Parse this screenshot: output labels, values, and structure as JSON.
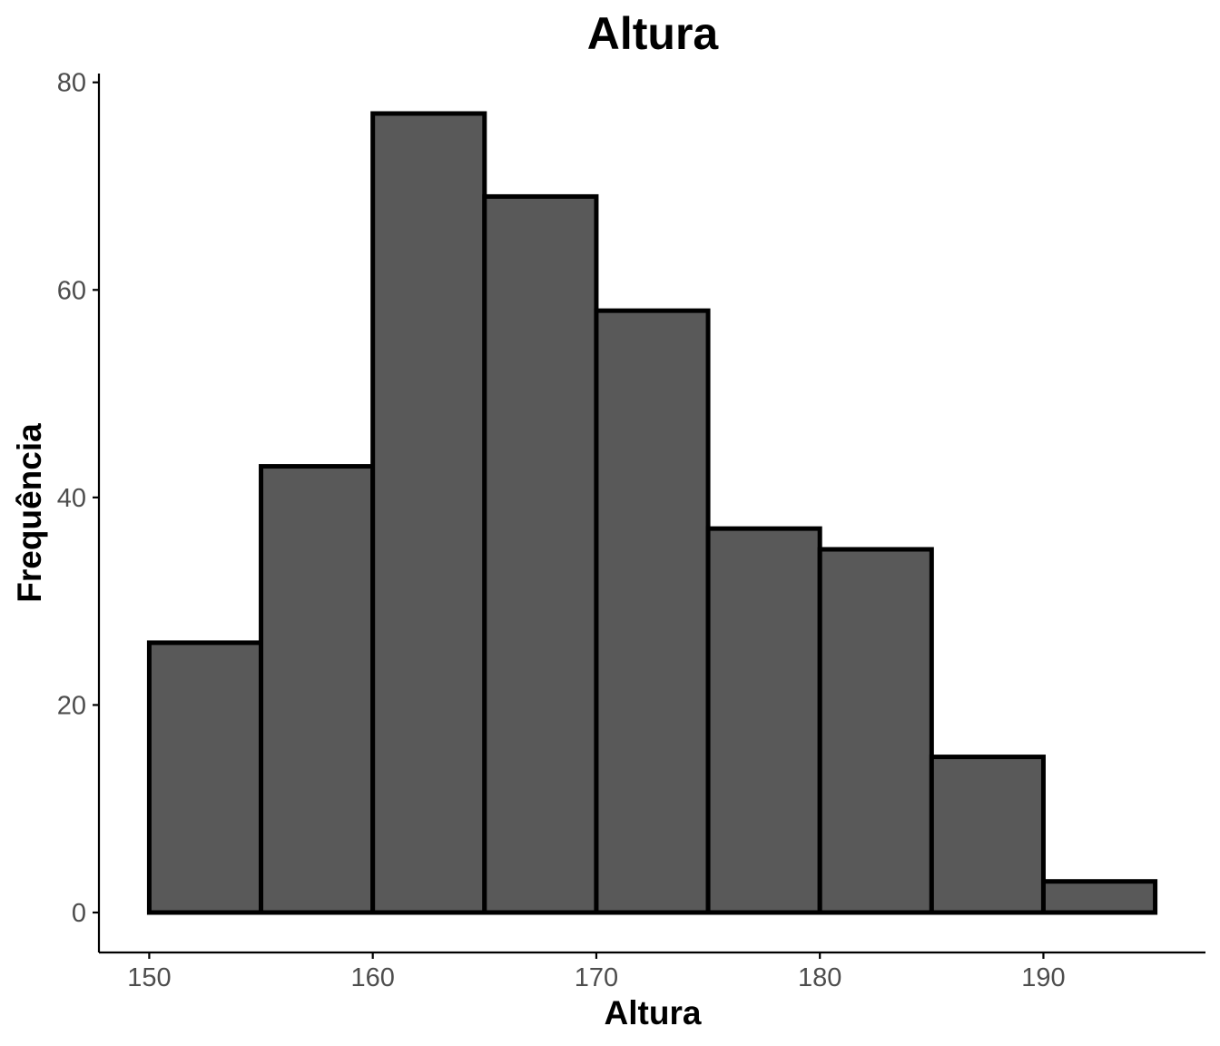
{
  "chart_data": {
    "type": "bar",
    "title": "Altura",
    "xlabel": "Altura",
    "ylabel": "Frequência",
    "bins": [
      {
        "x0": 150,
        "x1": 155,
        "count": 26
      },
      {
        "x0": 155,
        "x1": 160,
        "count": 43
      },
      {
        "x0": 160,
        "x1": 165,
        "count": 77
      },
      {
        "x0": 165,
        "x1": 170,
        "count": 69
      },
      {
        "x0": 170,
        "x1": 175,
        "count": 58
      },
      {
        "x0": 175,
        "x1": 180,
        "count": 37
      },
      {
        "x0": 180,
        "x1": 185,
        "count": 35
      },
      {
        "x0": 185,
        "x1": 190,
        "count": 15
      },
      {
        "x0": 190,
        "x1": 195,
        "count": 3
      }
    ],
    "xticks": [
      150,
      160,
      170,
      180,
      190
    ],
    "yticks": [
      0,
      20,
      40,
      60,
      80
    ],
    "xlim": [
      147.75,
      197.25
    ],
    "ylim": [
      -3.85,
      80.85
    ],
    "grid": false,
    "bar_color": "#595959",
    "bar_border_color": "#000000",
    "tick_label_color": "#4d4d4d"
  }
}
